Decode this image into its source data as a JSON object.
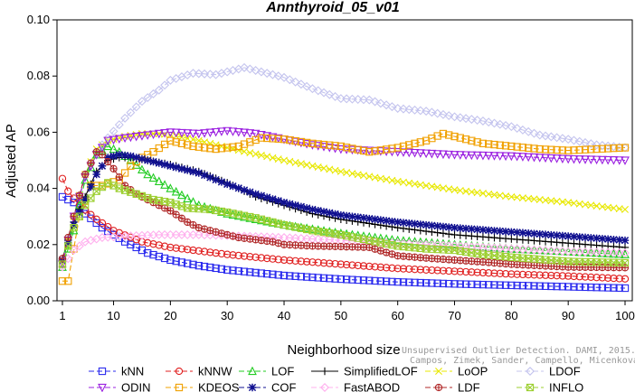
{
  "watermark": [
    "Unsupervised Outlier Detection. DAMI, 2015.",
    "Campos, Zimek, Sander, Campello, Micenkova, Schubert, Assent, Houle"
  ],
  "chart_data": {
    "type": "line",
    "title": "Annthyroid_05_v01",
    "xlabel": "Neighborhood size",
    "ylabel": "Adjusted AP",
    "xlim": [
      1,
      100
    ],
    "ylim": [
      0,
      0.1
    ],
    "xticks": [
      1,
      10,
      20,
      30,
      40,
      50,
      60,
      70,
      80,
      90,
      100
    ],
    "xtick_labels": [
      "1",
      "10",
      "20",
      "30",
      "40",
      "50",
      "60",
      "70",
      "80",
      "90",
      "100"
    ],
    "yticks": [
      0,
      0.02,
      0.04,
      0.06,
      0.08,
      0.1
    ],
    "ytick_labels": [
      "0.00",
      "0.02",
      "0.04",
      "0.06",
      "0.08",
      "0.10"
    ],
    "grid": false,
    "legend_position": "bottom",
    "series": [
      {
        "name": "kNN",
        "color": "#2a2aee",
        "marker": "square",
        "dash": "6,3",
        "points": [
          [
            1,
            0.037
          ],
          [
            3,
            0.035
          ],
          [
            5,
            0.031
          ],
          [
            8,
            0.026
          ],
          [
            12,
            0.021
          ],
          [
            16,
            0.017
          ],
          [
            20,
            0.0145
          ],
          [
            25,
            0.0125
          ],
          [
            30,
            0.011
          ],
          [
            40,
            0.009
          ],
          [
            50,
            0.0077
          ],
          [
            60,
            0.0067
          ],
          [
            70,
            0.006
          ],
          [
            80,
            0.0055
          ],
          [
            90,
            0.005
          ],
          [
            100,
            0.0045
          ]
        ]
      },
      {
        "name": "kNNW",
        "color": "#e02020",
        "marker": "circle",
        "dash": "6,3",
        "points": [
          [
            1,
            0.0435
          ],
          [
            2,
            0.039
          ],
          [
            4,
            0.034
          ],
          [
            7,
            0.029
          ],
          [
            10,
            0.025
          ],
          [
            15,
            0.021
          ],
          [
            20,
            0.019
          ],
          [
            30,
            0.0165
          ],
          [
            40,
            0.0145
          ],
          [
            50,
            0.013
          ],
          [
            60,
            0.0115
          ],
          [
            70,
            0.0105
          ],
          [
            80,
            0.0095
          ],
          [
            90,
            0.0088
          ],
          [
            100,
            0.0078
          ]
        ]
      },
      {
        "name": "LOF",
        "color": "#22cc22",
        "marker": "triangle-up",
        "dash": "6,3",
        "points": [
          [
            1,
            0.012
          ],
          [
            3,
            0.025
          ],
          [
            5,
            0.043
          ],
          [
            7,
            0.052
          ],
          [
            9,
            0.055
          ],
          [
            11,
            0.053
          ],
          [
            13,
            0.05
          ],
          [
            16,
            0.045
          ],
          [
            20,
            0.04
          ],
          [
            25,
            0.034
          ],
          [
            30,
            0.031
          ],
          [
            40,
            0.027
          ],
          [
            50,
            0.024
          ],
          [
            60,
            0.0215
          ],
          [
            70,
            0.02
          ],
          [
            80,
            0.0185
          ],
          [
            90,
            0.0175
          ],
          [
            100,
            0.0165
          ]
        ]
      },
      {
        "name": "SimplifiedLOF",
        "color": "#000000",
        "marker": "plus",
        "dash": "",
        "points": [
          [
            1,
            0.015
          ],
          [
            3,
            0.028
          ],
          [
            5,
            0.037
          ],
          [
            7,
            0.046
          ],
          [
            9,
            0.05
          ],
          [
            11,
            0.051
          ],
          [
            13,
            0.051
          ],
          [
            16,
            0.05
          ],
          [
            20,
            0.0485
          ],
          [
            25,
            0.046
          ],
          [
            30,
            0.042
          ],
          [
            35,
            0.037
          ],
          [
            40,
            0.034
          ],
          [
            45,
            0.031
          ],
          [
            50,
            0.029
          ],
          [
            60,
            0.026
          ],
          [
            70,
            0.0235
          ],
          [
            80,
            0.022
          ],
          [
            90,
            0.0205
          ],
          [
            100,
            0.019
          ]
        ]
      },
      {
        "name": "LoOP",
        "color": "#e8e800",
        "marker": "x",
        "dash": "6,3",
        "points": [
          [
            1,
            0.013
          ],
          [
            3,
            0.03
          ],
          [
            5,
            0.045
          ],
          [
            7,
            0.054
          ],
          [
            9,
            0.057
          ],
          [
            12,
            0.0585
          ],
          [
            15,
            0.0595
          ],
          [
            18,
            0.0595
          ],
          [
            20,
            0.059
          ],
          [
            25,
            0.057
          ],
          [
            30,
            0.0545
          ],
          [
            40,
            0.05
          ],
          [
            50,
            0.046
          ],
          [
            60,
            0.0425
          ],
          [
            70,
            0.0395
          ],
          [
            80,
            0.037
          ],
          [
            90,
            0.035
          ],
          [
            100,
            0.0325
          ]
        ]
      },
      {
        "name": "LDOF",
        "color": "#c4c4ee",
        "marker": "diamond",
        "dash": "6,3",
        "points": [
          [
            1,
            0.014
          ],
          [
            3,
            0.03
          ],
          [
            5,
            0.045
          ],
          [
            7,
            0.053
          ],
          [
            9,
            0.058
          ],
          [
            12,
            0.065
          ],
          [
            15,
            0.071
          ],
          [
            18,
            0.075
          ],
          [
            20,
            0.0785
          ],
          [
            24,
            0.081
          ],
          [
            28,
            0.0805
          ],
          [
            33,
            0.083
          ],
          [
            36,
            0.0815
          ],
          [
            40,
            0.0795
          ],
          [
            45,
            0.0755
          ],
          [
            50,
            0.072
          ],
          [
            55,
            0.0715
          ],
          [
            60,
            0.0685
          ],
          [
            65,
            0.0675
          ],
          [
            70,
            0.0655
          ],
          [
            75,
            0.064
          ],
          [
            80,
            0.062
          ],
          [
            85,
            0.059
          ],
          [
            90,
            0.0575
          ],
          [
            95,
            0.0555
          ],
          [
            100,
            0.0545
          ]
        ]
      },
      {
        "name": "ODIN",
        "color": "#9b20e0",
        "marker": "triangle-down",
        "dash": "6,3",
        "points": [
          [
            1,
            0.013
          ],
          [
            3,
            0.03
          ],
          [
            5,
            0.044
          ],
          [
            7,
            0.052
          ],
          [
            9,
            0.057
          ],
          [
            12,
            0.058
          ],
          [
            16,
            0.059
          ],
          [
            20,
            0.06
          ],
          [
            25,
            0.0595
          ],
          [
            30,
            0.0605
          ],
          [
            35,
            0.0595
          ],
          [
            40,
            0.0575
          ],
          [
            45,
            0.0555
          ],
          [
            50,
            0.054
          ],
          [
            55,
            0.0535
          ],
          [
            60,
            0.053
          ],
          [
            70,
            0.052
          ],
          [
            80,
            0.0515
          ],
          [
            90,
            0.0505
          ],
          [
            100,
            0.05
          ]
        ]
      },
      {
        "name": "KDEOS",
        "color": "#f0a000",
        "marker": "square",
        "dash": "6,3",
        "points": [
          [
            1,
            0.007
          ],
          [
            2,
            0.007
          ],
          [
            4,
            0.03
          ],
          [
            6,
            0.041
          ],
          [
            8,
            0.041
          ],
          [
            11,
            0.043
          ],
          [
            13,
            0.048
          ],
          [
            15,
            0.051
          ],
          [
            17,
            0.053
          ],
          [
            20,
            0.057
          ],
          [
            24,
            0.055
          ],
          [
            28,
            0.054
          ],
          [
            32,
            0.055
          ],
          [
            36,
            0.058
          ],
          [
            40,
            0.0575
          ],
          [
            45,
            0.056
          ],
          [
            50,
            0.055
          ],
          [
            55,
            0.053
          ],
          [
            60,
            0.0545
          ],
          [
            65,
            0.057
          ],
          [
            68,
            0.0595
          ],
          [
            71,
            0.058
          ],
          [
            75,
            0.056
          ],
          [
            80,
            0.055
          ],
          [
            85,
            0.054
          ],
          [
            90,
            0.0535
          ],
          [
            95,
            0.054
          ],
          [
            100,
            0.0545
          ]
        ]
      },
      {
        "name": "COF",
        "color": "#101090",
        "marker": "asterisk",
        "dash": "6,3",
        "points": [
          [
            1,
            0.0145
          ],
          [
            3,
            0.027
          ],
          [
            5,
            0.036
          ],
          [
            7,
            0.045
          ],
          [
            9,
            0.051
          ],
          [
            11,
            0.052
          ],
          [
            13,
            0.0515
          ],
          [
            16,
            0.05
          ],
          [
            20,
            0.048
          ],
          [
            25,
            0.0455
          ],
          [
            30,
            0.0415
          ],
          [
            35,
            0.038
          ],
          [
            40,
            0.035
          ],
          [
            45,
            0.0325
          ],
          [
            50,
            0.0305
          ],
          [
            60,
            0.028
          ],
          [
            70,
            0.026
          ],
          [
            80,
            0.0245
          ],
          [
            90,
            0.023
          ],
          [
            100,
            0.0215
          ]
        ]
      },
      {
        "name": "FastABOD",
        "color": "#ffb0ee",
        "marker": "diamond",
        "dash": "6,3",
        "points": [
          [
            1,
            0.012
          ],
          [
            3,
            0.018
          ],
          [
            5,
            0.021
          ],
          [
            8,
            0.0225
          ],
          [
            12,
            0.023
          ],
          [
            18,
            0.0235
          ],
          [
            25,
            0.0235
          ],
          [
            30,
            0.0232
          ],
          [
            40,
            0.0225
          ],
          [
            50,
            0.0215
          ],
          [
            60,
            0.0205
          ],
          [
            70,
            0.0195
          ],
          [
            80,
            0.0185
          ],
          [
            90,
            0.0175
          ],
          [
            100,
            0.017
          ]
        ]
      },
      {
        "name": "LDF",
        "color": "#b02828",
        "marker": "circle-plus",
        "dash": "6,3",
        "points": [
          [
            1,
            0.015
          ],
          [
            3,
            0.03
          ],
          [
            5,
            0.045
          ],
          [
            7,
            0.053
          ],
          [
            8,
            0.052
          ],
          [
            10,
            0.047
          ],
          [
            12,
            0.041
          ],
          [
            14,
            0.038
          ],
          [
            17,
            0.035
          ],
          [
            20,
            0.032
          ],
          [
            23,
            0.028
          ],
          [
            25,
            0.026
          ],
          [
            28,
            0.0245
          ],
          [
            32,
            0.0225
          ],
          [
            38,
            0.021
          ],
          [
            40,
            0.02
          ],
          [
            45,
            0.0195
          ],
          [
            50,
            0.0193
          ],
          [
            55,
            0.019
          ],
          [
            60,
            0.016
          ],
          [
            65,
            0.0152
          ],
          [
            70,
            0.0145
          ],
          [
            75,
            0.0138
          ],
          [
            80,
            0.013
          ],
          [
            90,
            0.012
          ],
          [
            100,
            0.0118
          ]
        ]
      },
      {
        "name": "INFLO",
        "color": "#9ccf30",
        "marker": "x-square",
        "dash": "6,3",
        "points": [
          [
            1,
            0.013
          ],
          [
            3,
            0.026
          ],
          [
            5,
            0.034
          ],
          [
            7,
            0.039
          ],
          [
            9,
            0.042
          ],
          [
            11,
            0.04
          ],
          [
            14,
            0.038
          ],
          [
            17,
            0.036
          ],
          [
            20,
            0.035
          ],
          [
            23,
            0.033
          ],
          [
            27,
            0.0325
          ],
          [
            30,
            0.0315
          ],
          [
            35,
            0.0295
          ],
          [
            40,
            0.027
          ],
          [
            45,
            0.025
          ],
          [
            50,
            0.0235
          ],
          [
            55,
            0.0215
          ],
          [
            60,
            0.0195
          ],
          [
            65,
            0.0185
          ],
          [
            70,
            0.018
          ],
          [
            75,
            0.0165
          ],
          [
            80,
            0.0155
          ],
          [
            90,
            0.014
          ],
          [
            100,
            0.0135
          ]
        ]
      }
    ]
  }
}
